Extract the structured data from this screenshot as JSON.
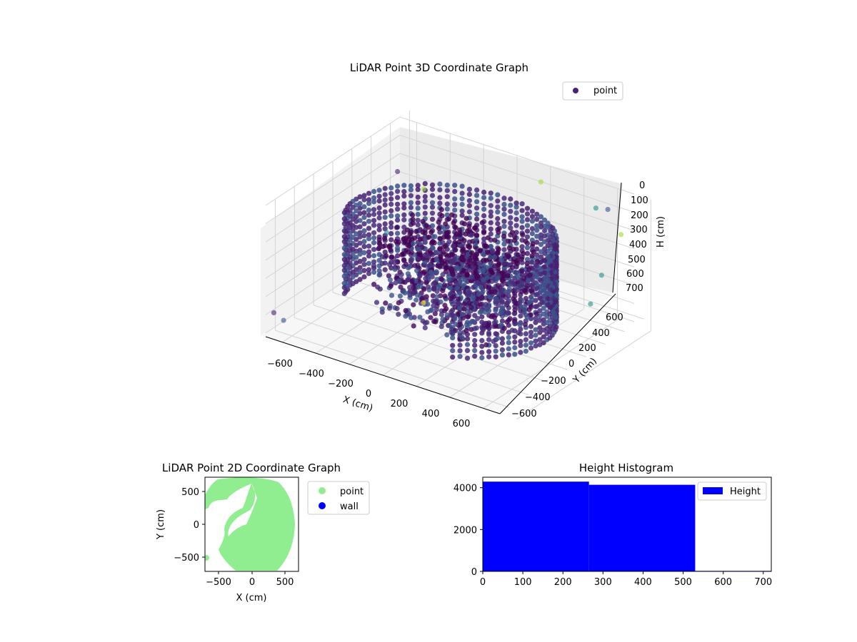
{
  "chart_data": [
    {
      "type": "scatter",
      "title": "LiDAR Point 3D Coordinate Graph",
      "xlabel": "X (cm)",
      "ylabel": "Y (cm)",
      "zlabel": "H (cm)",
      "xlim": [
        -700,
        700
      ],
      "ylim": [
        -700,
        700
      ],
      "zlim": [
        0,
        720
      ],
      "z_inverted": true,
      "x_ticks": [
        "−600",
        "−400",
        "−200",
        "0",
        "200",
        "400",
        "600"
      ],
      "y_ticks": [
        "−600",
        "−400",
        "−200",
        "0",
        "200",
        "400",
        "600"
      ],
      "z_ticks": [
        "0",
        "100",
        "200",
        "300",
        "400",
        "500",
        "600",
        "700"
      ],
      "legend": [
        {
          "name": "point",
          "color": "#482173"
        }
      ],
      "legend_position": "upper-right",
      "grid": true,
      "colormap": "viridis",
      "colors": {
        "pane": "#f2f2f2",
        "grid": "#d4d4d4"
      }
    },
    {
      "type": "scatter",
      "title": "LiDAR Point 2D Coordinate Graph",
      "xlabel": "X (cm)",
      "ylabel": "Y (cm)",
      "xlim": [
        -700,
        700
      ],
      "ylim": [
        -700,
        700
      ],
      "x_ticks": [
        "−500",
        "0",
        "500"
      ],
      "y_ticks": [
        "−500",
        "0",
        "500"
      ],
      "legend": [
        {
          "name": "point",
          "color": "#90ee90"
        },
        {
          "name": "wall",
          "color": "#0000ff"
        }
      ],
      "legend_position": "outside-right"
    },
    {
      "type": "bar",
      "title": "Height Histogram",
      "xlabel": "",
      "ylabel": "",
      "bins": [
        {
          "from": 0,
          "to": 265,
          "value": 4290
        },
        {
          "from": 265,
          "to": 530,
          "value": 4140
        },
        {
          "from": 530,
          "to": 720,
          "value": 25
        }
      ],
      "xlim": [
        0,
        720
      ],
      "ylim": [
        0,
        4500
      ],
      "x_ticks": [
        "0",
        "100",
        "200",
        "300",
        "400",
        "500",
        "600",
        "700"
      ],
      "y_ticks": [
        "0",
        "2000",
        "4000"
      ],
      "legend": [
        {
          "name": "Height",
          "color": "#0000ff"
        }
      ],
      "legend_position": "upper-right"
    }
  ]
}
